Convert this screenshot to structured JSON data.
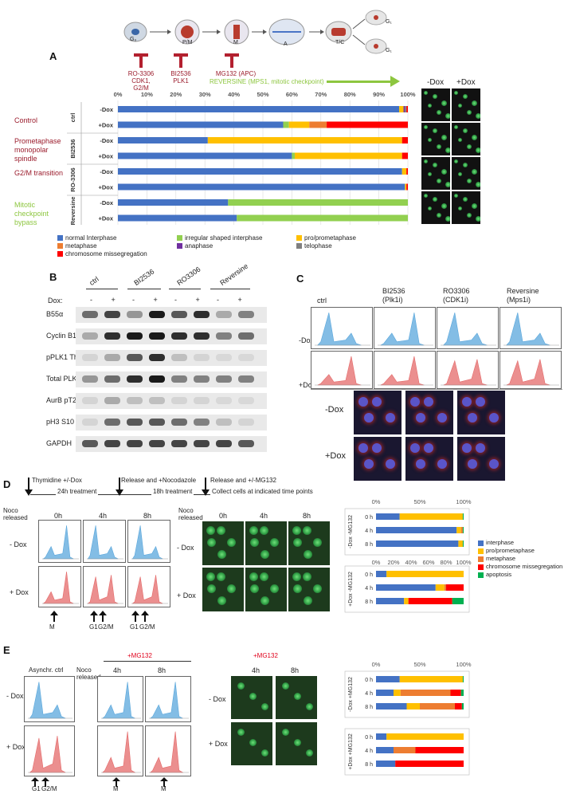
{
  "top_schematic": {
    "stages": [
      "G₀",
      "P/M",
      "M",
      "A",
      "T/C",
      "G₁",
      "G₁"
    ],
    "inhibitors": [
      {
        "name": "RO-3306",
        "target": "CDK1, G2/M"
      },
      {
        "name": "BI2536",
        "target": "PLK1"
      },
      {
        "name": "MG132 (APC)",
        "target": ""
      }
    ],
    "reversine_label": "REVERSINE (MPS1, mitotic checkpoint)"
  },
  "panel_A": {
    "letter": "A",
    "row_groups": [
      {
        "desc": "Control",
        "short": "ctrl"
      },
      {
        "desc": "Prometaphase monopolar spindle",
        "short": "BI2536"
      },
      {
        "desc": "G2/M transition",
        "short": "RO-3306"
      },
      {
        "desc": "Mitotic checkpoint bypass",
        "short": "Reversine"
      }
    ],
    "dox_labels": [
      "-Dox",
      "+Dox"
    ],
    "image_headers": [
      "-Dox",
      "+Dox"
    ],
    "legend": [
      {
        "label": "normal Interphase",
        "color": "#4472c4"
      },
      {
        "label": "irregular shaped interphase",
        "color": "#92d050"
      },
      {
        "label": "pro/prometaphase",
        "color": "#ffc000"
      },
      {
        "label": "metaphase",
        "color": "#ed7d31"
      },
      {
        "label": "anaphase",
        "color": "#7030a0"
      },
      {
        "label": "telophase",
        "color": "#808080"
      },
      {
        "label": "chromosome missegregation",
        "color": "#ff0000"
      }
    ],
    "colors": {
      "desc_red": "#9b1c2c",
      "desc_green": "#8dc63f"
    }
  },
  "chart_data": [
    {
      "type": "bar",
      "orientation": "horizontal-stacked-percent",
      "panel": "A",
      "x_ticks": [
        "0%",
        "10%",
        "20%",
        "30%",
        "40%",
        "50%",
        "60%",
        "70%",
        "80%",
        "90%",
        "100%"
      ],
      "categories": [
        "ctrl -Dox",
        "ctrl +Dox",
        "BI2536 -Dox",
        "BI2536 +Dox",
        "RO-3306 -Dox",
        "RO-3306 +Dox",
        "Reversine -Dox",
        "Reversine +Dox"
      ],
      "series": [
        {
          "name": "normal Interphase",
          "values": [
            97,
            57,
            31,
            60,
            98,
            99,
            38,
            41
          ]
        },
        {
          "name": "irregular shaped interphase",
          "values": [
            0,
            2,
            0,
            1,
            0,
            0,
            62,
            59
          ]
        },
        {
          "name": "pro/prometaphase",
          "values": [
            1.5,
            7,
            67,
            37,
            1.5,
            0.5,
            0,
            0
          ]
        },
        {
          "name": "metaphase",
          "values": [
            0,
            6,
            0,
            0,
            0,
            0,
            0,
            0
          ]
        },
        {
          "name": "anaphase",
          "values": [
            0.5,
            0,
            0,
            0,
            0,
            0,
            0,
            0
          ]
        },
        {
          "name": "telophase",
          "values": [
            0.5,
            0,
            0,
            0,
            0,
            0,
            0,
            0
          ]
        },
        {
          "name": "chromosome missegregation",
          "values": [
            0.5,
            28,
            2,
            2,
            0.5,
            0.5,
            0,
            0
          ]
        }
      ],
      "xlim": [
        0,
        100
      ],
      "grid": true
    },
    {
      "type": "bar",
      "orientation": "horizontal-stacked-percent",
      "panel": "D",
      "x_ticks": [
        "0%",
        "50%",
        "100%"
      ],
      "x_ticks_lower": [
        "0%",
        "20%",
        "40%",
        "60%",
        "80%",
        "100%"
      ],
      "groups": [
        {
          "label": "-Dox -MG132",
          "categories": [
            "0 h",
            "4 h",
            "8 h"
          ]
        },
        {
          "label": "+Dox -MG132",
          "categories": [
            "0 h",
            "4 h",
            "8 h"
          ]
        }
      ],
      "series": [
        {
          "name": "interphase",
          "values": [
            27,
            92,
            94,
            12,
            68,
            32
          ]
        },
        {
          "name": "pro/prometaphase",
          "values": [
            72,
            5,
            5,
            88,
            10,
            5
          ]
        },
        {
          "name": "metaphase",
          "values": [
            0,
            2,
            0,
            0,
            2,
            0
          ]
        },
        {
          "name": "chromosome missegregation",
          "values": [
            0,
            0,
            0,
            0,
            20,
            50
          ]
        },
        {
          "name": "apoptosis",
          "values": [
            1,
            1,
            1,
            0,
            0,
            13
          ]
        }
      ],
      "legend": [
        {
          "label": "interphase",
          "color": "#4472c4"
        },
        {
          "label": "pro/prometaphase",
          "color": "#ffc000"
        },
        {
          "label": "metaphase",
          "color": "#ed7d31"
        },
        {
          "label": "chromosome missegregation",
          "color": "#ff0000"
        },
        {
          "label": "apoptosis",
          "color": "#00b050"
        }
      ],
      "xlim": [
        0,
        100
      ]
    },
    {
      "type": "bar",
      "orientation": "horizontal-stacked-percent",
      "panel": "E",
      "x_ticks": [
        "0%",
        "50%",
        "100%"
      ],
      "groups": [
        {
          "label": "-Dox +MG132",
          "categories": [
            "0 h",
            "4 h",
            "8 h"
          ]
        },
        {
          "label": "+Dox +MG132",
          "categories": [
            "0 h",
            "4 h",
            "8 h"
          ]
        }
      ],
      "series": [
        {
          "name": "interphase",
          "values": [
            27,
            20,
            35,
            12,
            20,
            22
          ]
        },
        {
          "name": "pro/prometaphase",
          "values": [
            72,
            8,
            15,
            88,
            0,
            0
          ]
        },
        {
          "name": "metaphase",
          "values": [
            0,
            57,
            40,
            0,
            25,
            0
          ]
        },
        {
          "name": "chromosome missegregation",
          "values": [
            0,
            12,
            8,
            0,
            55,
            78
          ]
        },
        {
          "name": "apoptosis",
          "values": [
            1,
            3,
            2,
            0,
            0,
            0
          ]
        }
      ],
      "xlim": [
        0,
        100
      ]
    }
  ],
  "panel_B": {
    "letter": "B",
    "dox_label": "Dox:",
    "lanes": [
      "ctrl",
      "BI2536",
      "RO3306",
      "Reversine"
    ],
    "signs": [
      "-",
      "+",
      "-",
      "+",
      "-",
      "+",
      "-",
      "+"
    ],
    "proteins": [
      "B55α",
      "Cyclin B1",
      "pPLK1 Thr210",
      "Total PLK1",
      "AurB pT232",
      "pH3 S10",
      "GAPDH"
    ]
  },
  "panel_C": {
    "letter": "C",
    "columns": [
      "ctrl",
      "BI2536 (Plk1i)",
      "RO3306 (CDK1i)",
      "Reversine (Mps1i)"
    ],
    "rows": [
      "-Dox",
      "+Dox"
    ],
    "image_rows": [
      "-Dox",
      "+Dox"
    ]
  },
  "panel_D": {
    "letter": "D",
    "timeline": [
      {
        "top": "Thymidine +/-Dox",
        "bottom": "24h treatment"
      },
      {
        "top": "Release and +Nocodazole",
        "bottom": "18h treatment"
      },
      {
        "top": "Release and +/-MG132",
        "bottom": ""
      },
      {
        "top": "Collect cells at indicated time points",
        "bottom": ""
      }
    ],
    "noco_label": "Noco released",
    "times": [
      "0h",
      "4h",
      "8h"
    ],
    "rows": [
      "- Dox",
      "+ Dox"
    ],
    "arrows": [
      "M",
      "G1",
      "G2/M",
      "G1",
      "G2/M"
    ]
  },
  "panel_E": {
    "letter": "E",
    "asynch": "Asynchr. ctrl",
    "mg_label": "+MG132",
    "noco_label": "Noco released",
    "times": [
      "4h",
      "8h"
    ],
    "rows": [
      "- Dox",
      "+ Dox"
    ],
    "arrows": [
      "G1",
      "G2/M",
      "M",
      "M"
    ]
  }
}
